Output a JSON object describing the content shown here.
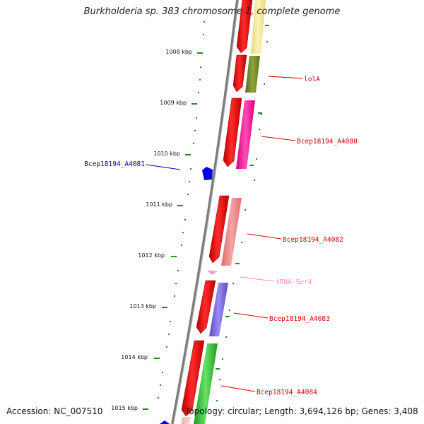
{
  "map": {
    "title": "Burkholderia sp. 383 chromosome 1, complete genome",
    "accession": "Accession: NC_007510",
    "topology": "Topology: circular; Length: 3,694,126 bp; Genes: 3,408",
    "tick_labels": [
      "1008 kbp",
      "1009 kbp",
      "1010 kbp",
      "1011 kbp",
      "1012 kbp",
      "1013 kbp",
      "1014 kbp",
      "1015 kbp"
    ],
    "gene_labels": [
      {
        "text": "lolA",
        "color": "#d40000"
      },
      {
        "text": "Bcep18194_A4080",
        "color": "#d40000"
      },
      {
        "text": "Bcep18194_A4081",
        "color": "#0000aa"
      },
      {
        "text": "Bcep18194_A4082",
        "color": "#d40000"
      },
      {
        "text": "tRNA-Ser4",
        "color": "#ff88cc"
      },
      {
        "text": "Bcep18194_A4083",
        "color": "#d40000"
      },
      {
        "text": "Bcep18194_A4084",
        "color": "#d40000"
      }
    ],
    "feature_colors": {
      "cds": "#ee0000",
      "backbone": "#7a7a7a",
      "ticks": "#228b22",
      "lolA": "#6b8e23",
      "A4080": "#ff1fa0",
      "A4082": "#f08080",
      "A4083": "#7b68ee",
      "A4084": "#32cd32",
      "top_pale": "#f0e68c",
      "A4081": "#0000ee",
      "trna": "#ff99cc"
    }
  }
}
